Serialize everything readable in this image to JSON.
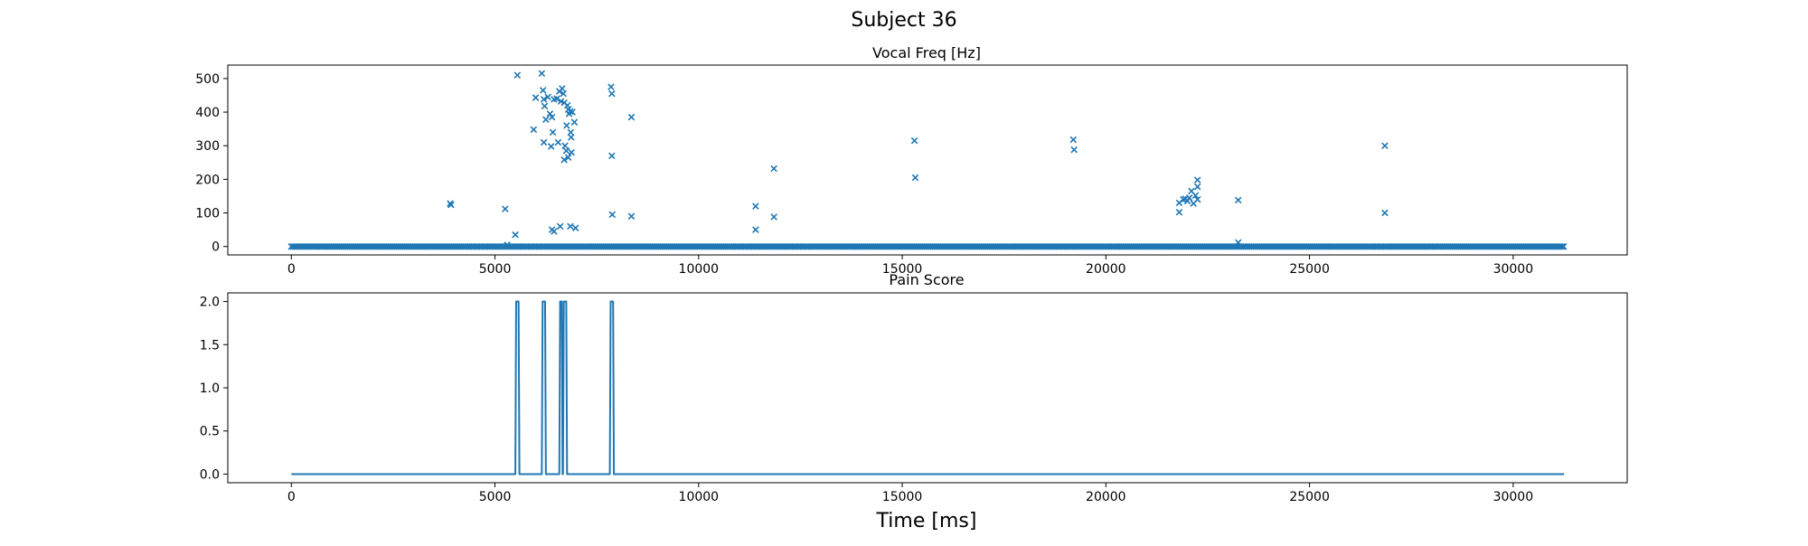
{
  "figure": {
    "title": "Subject 36",
    "xlabel": "Time [ms]"
  },
  "chart_data": [
    {
      "type": "scatter",
      "title": "Vocal Freq [Hz]",
      "xlim": [
        -1560,
        32800
      ],
      "ylim": [
        -25,
        540
      ],
      "xticks": [
        0,
        5000,
        10000,
        15000,
        20000,
        25000,
        30000
      ],
      "yticks": [
        0,
        100,
        200,
        300,
        400,
        500
      ],
      "marker": "x",
      "color": "#1f77b4",
      "baseline": {
        "y": 0,
        "x_start": 0,
        "x_end": 31250,
        "step": 40
      },
      "points": [
        [
          3900,
          128
        ],
        [
          3920,
          124
        ],
        [
          5250,
          112
        ],
        [
          5300,
          5
        ],
        [
          5500,
          35
        ],
        [
          5550,
          510
        ],
        [
          5950,
          348
        ],
        [
          6000,
          443
        ],
        [
          6150,
          515
        ],
        [
          6180,
          465
        ],
        [
          6200,
          438
        ],
        [
          6220,
          418
        ],
        [
          6250,
          378
        ],
        [
          6200,
          310
        ],
        [
          6300,
          445
        ],
        [
          6350,
          395
        ],
        [
          6380,
          298
        ],
        [
          6400,
          385
        ],
        [
          6420,
          340
        ],
        [
          6450,
          438
        ],
        [
          6400,
          50
        ],
        [
          6450,
          45
        ],
        [
          6520,
          440
        ],
        [
          6550,
          310
        ],
        [
          6580,
          462
        ],
        [
          6600,
          60
        ],
        [
          6620,
          432
        ],
        [
          6650,
          470
        ],
        [
          6680,
          455
        ],
        [
          6700,
          428
        ],
        [
          6720,
          300
        ],
        [
          6750,
          285
        ],
        [
          6760,
          360
        ],
        [
          6780,
          420
        ],
        [
          6800,
          408
        ],
        [
          6800,
          265
        ],
        [
          6820,
          395
        ],
        [
          6850,
          402
        ],
        [
          6860,
          340
        ],
        [
          6870,
          325
        ],
        [
          6880,
          280
        ],
        [
          6900,
          400
        ],
        [
          6950,
          370
        ],
        [
          6850,
          60
        ],
        [
          6980,
          55
        ],
        [
          6700,
          258
        ],
        [
          7850,
          475
        ],
        [
          7870,
          455
        ],
        [
          7870,
          270
        ],
        [
          7880,
          95
        ],
        [
          8350,
          385
        ],
        [
          8350,
          90
        ],
        [
          11400,
          120
        ],
        [
          11400,
          50
        ],
        [
          11850,
          232
        ],
        [
          11850,
          88
        ],
        [
          15300,
          315
        ],
        [
          15320,
          205
        ],
        [
          19200,
          318
        ],
        [
          19220,
          288
        ],
        [
          21800,
          130
        ],
        [
          21800,
          102
        ],
        [
          21900,
          140
        ],
        [
          21950,
          142
        ],
        [
          22000,
          135
        ],
        [
          22050,
          145
        ],
        [
          22100,
          165
        ],
        [
          22150,
          128
        ],
        [
          22200,
          152
        ],
        [
          22250,
          178
        ],
        [
          22250,
          198
        ],
        [
          22250,
          140
        ],
        [
          23250,
          138
        ],
        [
          23250,
          12
        ],
        [
          26850,
          300
        ],
        [
          26850,
          100
        ]
      ]
    },
    {
      "type": "line",
      "title": "Pain Score",
      "xlim": [
        -1560,
        32800
      ],
      "ylim": [
        -0.1,
        2.1
      ],
      "xticks": [
        0,
        5000,
        10000,
        15000,
        20000,
        25000,
        30000
      ],
      "yticks": [
        0.0,
        0.5,
        1.0,
        1.5,
        2.0
      ],
      "ytick_labels": [
        "0.0",
        "0.5",
        "1.0",
        "1.5",
        "2.0"
      ],
      "color": "#1f77b4",
      "x": [
        0,
        5500,
        5520,
        5580,
        5600,
        6150,
        6170,
        6230,
        6250,
        6580,
        6600,
        6640,
        6660,
        6670,
        6690,
        6750,
        6770,
        7820,
        7840,
        7900,
        7920,
        31250
      ],
      "y": [
        0,
        0,
        2,
        2,
        0,
        0,
        2,
        2,
        0,
        0,
        2,
        2,
        0,
        0,
        2,
        2,
        0,
        0,
        2,
        2,
        0,
        0
      ]
    }
  ]
}
